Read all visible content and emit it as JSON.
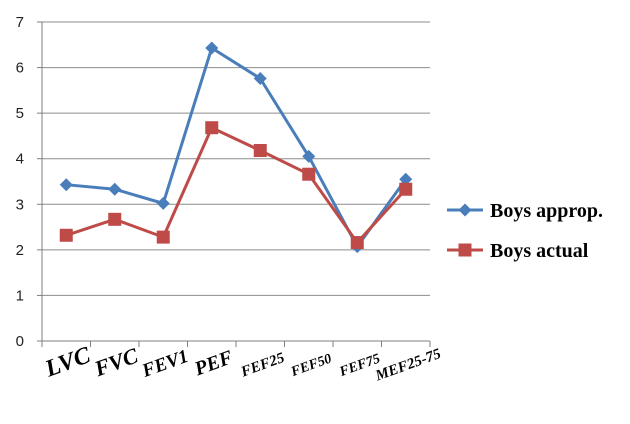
{
  "chart_data": {
    "type": "line",
    "categories": [
      "LVC",
      "FVC",
      "FEV1",
      "PEF",
      "FEF25",
      "FEF50",
      "FEF75",
      "MEF25-75"
    ],
    "series": [
      {
        "name": "Boys approp.",
        "color": "#4a7ebb",
        "marker": "diamond",
        "values": [
          3.43,
          3.33,
          3.02,
          6.43,
          5.76,
          4.05,
          2.07,
          3.55
        ]
      },
      {
        "name": "Boys actual",
        "color": "#be4b48",
        "marker": "square",
        "values": [
          2.32,
          2.67,
          2.28,
          4.68,
          4.18,
          3.66,
          2.16,
          3.33
        ]
      }
    ],
    "yticks": [
      "0",
      "1",
      "2",
      "3",
      "4",
      "5",
      "6",
      "7"
    ],
    "ylim": [
      0,
      7
    ],
    "grid": true,
    "legend": "right"
  }
}
